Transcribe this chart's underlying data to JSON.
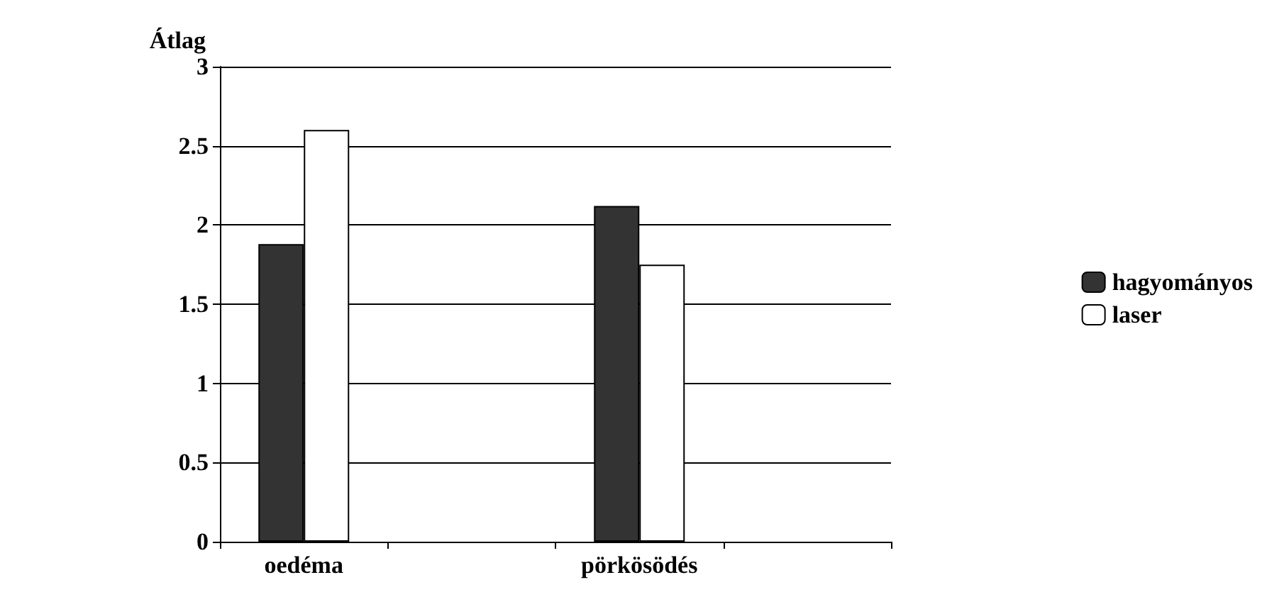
{
  "chart_data": {
    "type": "bar",
    "ylabel": "Átlag",
    "categories": [
      "oedéma",
      null,
      "pörkösödés",
      null
    ],
    "series": [
      {
        "name": "hagyományos",
        "color": "#333333",
        "values": [
          1.88,
          null,
          2.12,
          null
        ]
      },
      {
        "name": "laser",
        "color": "#ffffff",
        "values": [
          2.6,
          null,
          1.75,
          null
        ]
      }
    ],
    "ylim": [
      0,
      3
    ],
    "yticks": [
      0,
      0.5,
      1,
      1.5,
      2,
      2.5,
      3
    ],
    "grid": "y",
    "legend": "right"
  }
}
